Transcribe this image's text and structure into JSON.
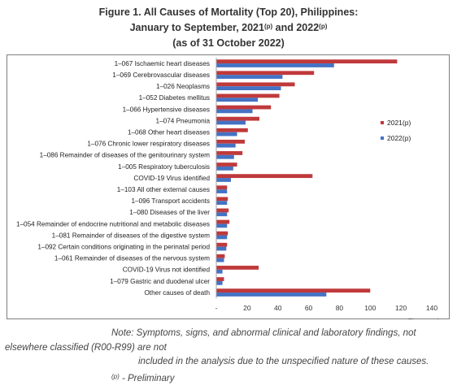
{
  "title_line1": "Figure 1. All Causes of Mortality (Top 20), Philippines:",
  "title_line2_pre": "January to September, 2021",
  "title_line2_mid": " and 2022",
  "title_sup": "(p)",
  "title_line3": "(as of 31 October 2022)",
  "note_line1": "Note: Symptoms, signs, and abnormal clinical and laboratory findings, not",
  "note_line2": "elsewhere classified (R00-R99) are not",
  "note_line3": "included in the analysis due to the unspecified nature of these causes.",
  "prelim_sup": "(p)",
  "prelim_text": " - Preliminary",
  "chart_data": {
    "type": "bar",
    "orientation": "horizontal",
    "categories": [
      "1–067 Ischaemic heart diseases",
      "1–069 Cerebrovascular diseases",
      "1–026 Neoplasms",
      "1–052 Diabetes mellitus",
      "1–066 Hypertensive diseases",
      "1–074 Pneumonia",
      "1–068 Other heart diseases",
      "1–076 Chronic lower respiratory diseases",
      "1–086 Remainder of diseases of the genitourinary system",
      "1–005 Respiratory tuberculosis",
      "COVID-19 Virus identified",
      "1–103 All other external causes",
      "1–096 Transport accidents",
      "1–080 Diseases of the liver",
      "1–054 Remainder of endocrine nutritional and metabolic diseases",
      "1–081 Remainder of diseases of the digestive system",
      "1–092 Certain conditions originating in the perinatal period",
      "1–061 Remainder of diseases of the nervous system",
      "COVID-19 Virus not identified",
      "1–079 Gastric and duodenal ulcer",
      "Other causes of death"
    ],
    "series": [
      {
        "name": "2021(p)",
        "color": "#c0393b",
        "values": [
          117.5,
          63.5,
          51,
          41,
          35.5,
          28,
          20.5,
          18.5,
          17,
          13.5,
          62.5,
          7,
          7.5,
          8,
          8.5,
          7.5,
          7,
          5.5,
          27.5,
          5,
          100
        ]
      },
      {
        "name": "2022(p)",
        "color": "#4472c4",
        "values": [
          76.5,
          43,
          42,
          27,
          23.5,
          19,
          13.5,
          12.5,
          11.5,
          11,
          9.5,
          7,
          7,
          7,
          7,
          7,
          6.5,
          5,
          4,
          4,
          71.5
        ]
      }
    ],
    "x_tick_labels": [
      "-",
      "20",
      "40",
      "60",
      "80",
      "100",
      "120",
      "140"
    ],
    "x_ticks": [
      0,
      20,
      40,
      60,
      80,
      100,
      120,
      140
    ],
    "xlim": [
      0,
      140
    ],
    "xlabel": "Thousands",
    "legend_position": "right",
    "grid": false
  }
}
